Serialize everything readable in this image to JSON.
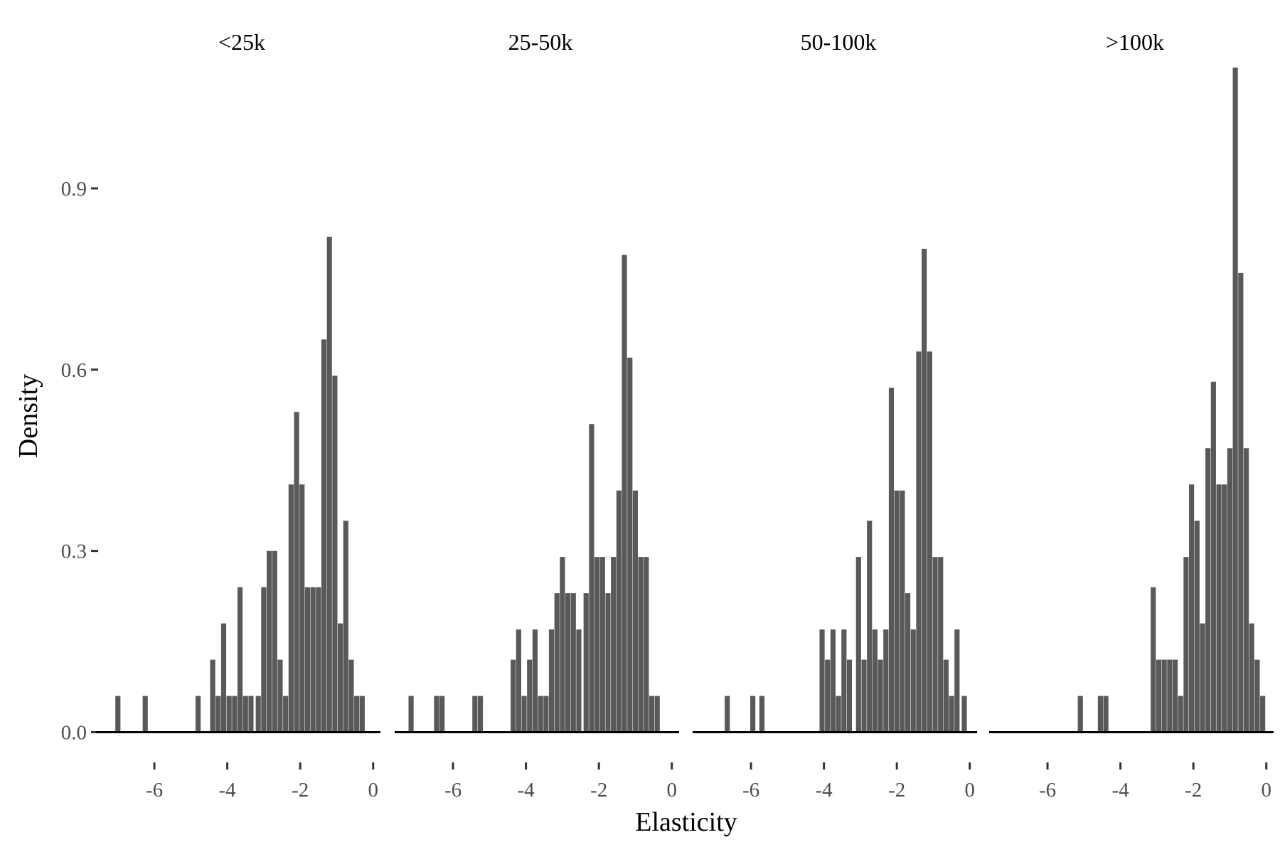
{
  "chart_data": {
    "type": "bar",
    "subtype": "histogram",
    "xlabel": "Elasticity",
    "ylabel": "Density",
    "xlim": [
      -7.6,
      0.2
    ],
    "ylim": [
      -0.03,
      1.1
    ],
    "x_ticks": [
      -6,
      -4,
      -2,
      0
    ],
    "x_tick_labels": [
      "-6",
      "-4",
      "-2",
      "0"
    ],
    "y_ticks": [
      0.0,
      0.3,
      0.6,
      0.9
    ],
    "y_tick_labels": [
      "0.0",
      "0.3",
      "0.6",
      "0.9"
    ],
    "bin_width": 0.14,
    "grid": false,
    "fill_color": "#595959",
    "panels": [
      {
        "title": "<25k",
        "bins": [
          {
            "x": -7.0,
            "y": 0.06
          },
          {
            "x": -6.25,
            "y": 0.06
          },
          {
            "x": -4.8,
            "y": 0.06
          },
          {
            "x": -4.4,
            "y": 0.12
          },
          {
            "x": -4.25,
            "y": 0.06
          },
          {
            "x": -4.1,
            "y": 0.18
          },
          {
            "x": -3.95,
            "y": 0.06
          },
          {
            "x": -3.8,
            "y": 0.06
          },
          {
            "x": -3.65,
            "y": 0.24
          },
          {
            "x": -3.5,
            "y": 0.06
          },
          {
            "x": -3.35,
            "y": 0.06
          },
          {
            "x": -3.15,
            "y": 0.06
          },
          {
            "x": -3.0,
            "y": 0.24
          },
          {
            "x": -2.85,
            "y": 0.3
          },
          {
            "x": -2.7,
            "y": 0.3
          },
          {
            "x": -2.55,
            "y": 0.12
          },
          {
            "x": -2.4,
            "y": 0.06
          },
          {
            "x": -2.25,
            "y": 0.41
          },
          {
            "x": -2.1,
            "y": 0.53
          },
          {
            "x": -1.95,
            "y": 0.41
          },
          {
            "x": -1.8,
            "y": 0.24
          },
          {
            "x": -1.65,
            "y": 0.24
          },
          {
            "x": -1.5,
            "y": 0.24
          },
          {
            "x": -1.35,
            "y": 0.65
          },
          {
            "x": -1.2,
            "y": 0.82
          },
          {
            "x": -1.05,
            "y": 0.59
          },
          {
            "x": -0.9,
            "y": 0.18
          },
          {
            "x": -0.75,
            "y": 0.35
          },
          {
            "x": -0.6,
            "y": 0.12
          },
          {
            "x": -0.45,
            "y": 0.06
          },
          {
            "x": -0.3,
            "y": 0.06
          }
        ]
      },
      {
        "title": "25-50k",
        "bins": [
          {
            "x": -7.15,
            "y": 0.06
          },
          {
            "x": -6.45,
            "y": 0.06
          },
          {
            "x": -6.3,
            "y": 0.06
          },
          {
            "x": -5.4,
            "y": 0.06
          },
          {
            "x": -5.25,
            "y": 0.06
          },
          {
            "x": -4.35,
            "y": 0.12
          },
          {
            "x": -4.2,
            "y": 0.17
          },
          {
            "x": -4.05,
            "y": 0.06
          },
          {
            "x": -3.9,
            "y": 0.12
          },
          {
            "x": -3.75,
            "y": 0.17
          },
          {
            "x": -3.6,
            "y": 0.06
          },
          {
            "x": -3.45,
            "y": 0.06
          },
          {
            "x": -3.3,
            "y": 0.17
          },
          {
            "x": -3.15,
            "y": 0.23
          },
          {
            "x": -3.0,
            "y": 0.29
          },
          {
            "x": -2.85,
            "y": 0.23
          },
          {
            "x": -2.7,
            "y": 0.23
          },
          {
            "x": -2.55,
            "y": 0.17
          },
          {
            "x": -2.35,
            "y": 0.23
          },
          {
            "x": -2.2,
            "y": 0.51
          },
          {
            "x": -2.05,
            "y": 0.29
          },
          {
            "x": -1.9,
            "y": 0.29
          },
          {
            "x": -1.75,
            "y": 0.23
          },
          {
            "x": -1.6,
            "y": 0.29
          },
          {
            "x": -1.45,
            "y": 0.4
          },
          {
            "x": -1.3,
            "y": 0.79
          },
          {
            "x": -1.15,
            "y": 0.62
          },
          {
            "x": -1.0,
            "y": 0.4
          },
          {
            "x": -0.85,
            "y": 0.29
          },
          {
            "x": -0.7,
            "y": 0.29
          },
          {
            "x": -0.55,
            "y": 0.06
          },
          {
            "x": -0.4,
            "y": 0.06
          }
        ]
      },
      {
        "title": "50-100k",
        "bins": [
          {
            "x": -6.65,
            "y": 0.06
          },
          {
            "x": -5.95,
            "y": 0.06
          },
          {
            "x": -5.7,
            "y": 0.06
          },
          {
            "x": -4.05,
            "y": 0.17
          },
          {
            "x": -3.9,
            "y": 0.12
          },
          {
            "x": -3.75,
            "y": 0.17
          },
          {
            "x": -3.6,
            "y": 0.06
          },
          {
            "x": -3.45,
            "y": 0.17
          },
          {
            "x": -3.3,
            "y": 0.12
          },
          {
            "x": -3.05,
            "y": 0.29
          },
          {
            "x": -2.9,
            "y": 0.12
          },
          {
            "x": -2.75,
            "y": 0.35
          },
          {
            "x": -2.6,
            "y": 0.17
          },
          {
            "x": -2.45,
            "y": 0.12
          },
          {
            "x": -2.3,
            "y": 0.17
          },
          {
            "x": -2.15,
            "y": 0.57
          },
          {
            "x": -2.0,
            "y": 0.4
          },
          {
            "x": -1.85,
            "y": 0.4
          },
          {
            "x": -1.7,
            "y": 0.23
          },
          {
            "x": -1.55,
            "y": 0.17
          },
          {
            "x": -1.4,
            "y": 0.63
          },
          {
            "x": -1.25,
            "y": 0.8
          },
          {
            "x": -1.1,
            "y": 0.63
          },
          {
            "x": -0.95,
            "y": 0.29
          },
          {
            "x": -0.8,
            "y": 0.29
          },
          {
            "x": -0.65,
            "y": 0.12
          },
          {
            "x": -0.5,
            "y": 0.06
          },
          {
            "x": -0.35,
            "y": 0.17
          },
          {
            "x": -0.15,
            "y": 0.06
          }
        ]
      },
      {
        "title": ">100k",
        "bins": [
          {
            "x": -5.1,
            "y": 0.06
          },
          {
            "x": -4.55,
            "y": 0.06
          },
          {
            "x": -4.4,
            "y": 0.06
          },
          {
            "x": -3.1,
            "y": 0.24
          },
          {
            "x": -2.95,
            "y": 0.12
          },
          {
            "x": -2.8,
            "y": 0.12
          },
          {
            "x": -2.65,
            "y": 0.12
          },
          {
            "x": -2.5,
            "y": 0.12
          },
          {
            "x": -2.35,
            "y": 0.06
          },
          {
            "x": -2.2,
            "y": 0.29
          },
          {
            "x": -2.05,
            "y": 0.41
          },
          {
            "x": -1.9,
            "y": 0.35
          },
          {
            "x": -1.75,
            "y": 0.18
          },
          {
            "x": -1.6,
            "y": 0.47
          },
          {
            "x": -1.45,
            "y": 0.58
          },
          {
            "x": -1.3,
            "y": 0.41
          },
          {
            "x": -1.15,
            "y": 0.41
          },
          {
            "x": -1.0,
            "y": 0.47
          },
          {
            "x": -0.85,
            "y": 1.1
          },
          {
            "x": -0.7,
            "y": 0.76
          },
          {
            "x": -0.55,
            "y": 0.47
          },
          {
            "x": -0.4,
            "y": 0.18
          },
          {
            "x": -0.25,
            "y": 0.12
          },
          {
            "x": -0.1,
            "y": 0.06
          }
        ]
      }
    ]
  }
}
